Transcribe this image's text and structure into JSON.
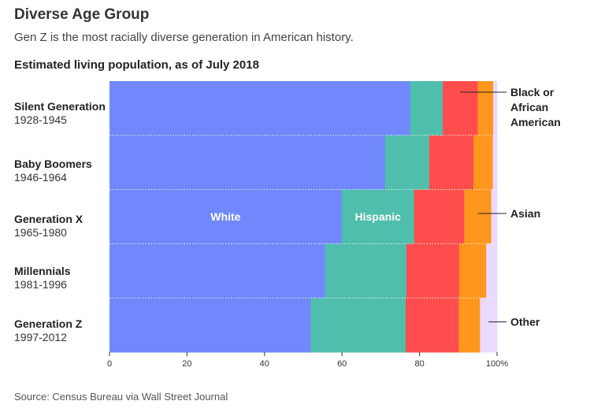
{
  "header": {
    "title": "Diverse Age Group",
    "subtitle": "Gen Z is the most racially diverse generation in American history.",
    "caption": "Estimated living population, as of July 2018"
  },
  "footer": {
    "source": "Source: Census Bureau via Wall Street Journal"
  },
  "rows": [
    {
      "name": "Silent Generation",
      "years": "1928-1945"
    },
    {
      "name": "Baby Boomers",
      "years": "1946-1964"
    },
    {
      "name": "Generation X",
      "years": "1965-1980"
    },
    {
      "name": "Millennials",
      "years": "1981-1996"
    },
    {
      "name": "Generation Z",
      "years": "1997-2012"
    }
  ],
  "chart_data": {
    "type": "bar",
    "orientation": "horizontal",
    "stacked": true,
    "title": "Estimated living population, as of July 2018",
    "categories": [
      "Silent Generation",
      "Baby Boomers",
      "Generation X",
      "Millennials",
      "Generation Z"
    ],
    "series": [
      {
        "name": "White",
        "color": "#7088fc",
        "values": [
          77.6,
          71.1,
          59.9,
          55.6,
          51.9
        ]
      },
      {
        "name": "Hispanic",
        "color": "#50beac",
        "values": [
          8.4,
          11.4,
          18.7,
          21.0,
          24.5
        ]
      },
      {
        "name": "Black or African American",
        "color": "#ff4d4d",
        "values": [
          9.0,
          11.4,
          12.9,
          13.6,
          13.7
        ]
      },
      {
        "name": "Asian",
        "color": "#ff961d",
        "values": [
          4.0,
          5.0,
          7.0,
          7.0,
          5.5
        ]
      },
      {
        "name": "Other",
        "color": "#ecd9ff",
        "values": [
          1.0,
          1.1,
          1.5,
          2.8,
          4.4
        ]
      }
    ],
    "xlim": [
      0,
      100
    ],
    "xticks": [
      "0",
      "20",
      "40",
      "60",
      "80",
      "100%"
    ],
    "inline_labels": [
      {
        "series": "White",
        "text": "White",
        "row": 2
      },
      {
        "series": "Hispanic",
        "text": "Hispanic",
        "row": 2
      }
    ],
    "annotations": [
      {
        "series": "Black or African American",
        "lines": [
          "Black or",
          "African",
          "American"
        ],
        "row": 0
      },
      {
        "series": "Asian",
        "lines": [
          "Asian"
        ],
        "row": 2
      },
      {
        "series": "Other",
        "lines": [
          "Other"
        ],
        "row": 4
      }
    ]
  }
}
